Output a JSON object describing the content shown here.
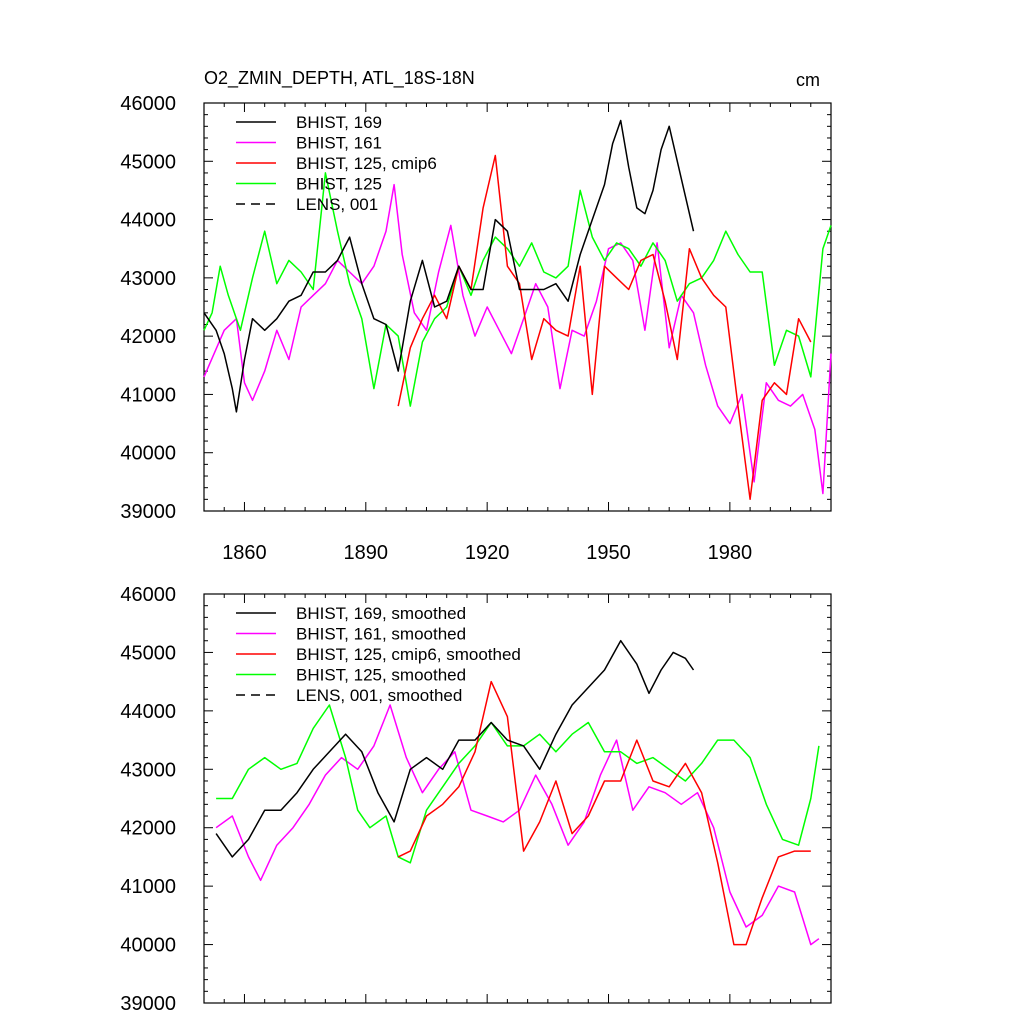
{
  "chart_data": [
    {
      "type": "line",
      "title": "O2_ZMIN_DEPTH, ATL_18S-18N",
      "units": "cm",
      "xlabel": "",
      "ylabel": "",
      "xlim": [
        1850,
        2005
      ],
      "ylim": [
        39000,
        46000
      ],
      "xticks": [
        1860,
        1890,
        1920,
        1950,
        1980
      ],
      "yticks": [
        39000,
        40000,
        41000,
        42000,
        43000,
        44000,
        45000,
        46000
      ],
      "show_x_tick_labels": true,
      "legend_position": "top-left",
      "legend": [
        {
          "label": "BHIST, 169",
          "color": "#000000",
          "dash": "solid"
        },
        {
          "label": "BHIST, 161",
          "color": "#ff00ff",
          "dash": "solid"
        },
        {
          "label": "BHIST, 125, cmip6",
          "color": "#ff0000",
          "dash": "solid"
        },
        {
          "label": "BHIST, 125",
          "color": "#00ff00",
          "dash": "solid"
        },
        {
          "label": "LENS, 001",
          "color": "#000000",
          "dash": "dashed"
        }
      ],
      "series": [
        {
          "name": "BHIST, 161",
          "color": "#ff00ff",
          "x": [
            1850,
            1855,
            1858,
            1860,
            1862,
            1865,
            1868,
            1871,
            1874,
            1877,
            1880,
            1883,
            1886,
            1889,
            1892,
            1895,
            1897,
            1899,
            1902,
            1905,
            1908,
            1911,
            1914,
            1917,
            1920,
            1923,
            1926,
            1929,
            1932,
            1935,
            1938,
            1941,
            1944,
            1947,
            1950,
            1953,
            1956,
            1959,
            1962,
            1965,
            1968,
            1971,
            1974,
            1977,
            1980,
            1983,
            1986,
            1989,
            1992,
            1995,
            1998,
            2001,
            2003,
            2005
          ],
          "values": [
            41300,
            42100,
            42300,
            41200,
            40900,
            41400,
            42100,
            41600,
            42500,
            42700,
            42900,
            43300,
            43100,
            42900,
            43200,
            43800,
            44600,
            43400,
            42400,
            42100,
            43100,
            43900,
            42700,
            42000,
            42500,
            42100,
            41700,
            42300,
            42900,
            42500,
            41100,
            42100,
            42000,
            42600,
            43500,
            43600,
            43300,
            42100,
            43600,
            41800,
            42700,
            42400,
            41500,
            40800,
            40500,
            41000,
            39500,
            41200,
            40900,
            40800,
            41000,
            40400,
            39300,
            41700
          ]
        },
        {
          "name": "BHIST, 125",
          "color": "#00ff00",
          "x": [
            1850,
            1852,
            1854,
            1856,
            1859,
            1862,
            1865,
            1868,
            1871,
            1874,
            1877,
            1880,
            1883,
            1886,
            1889,
            1892,
            1895,
            1898,
            1901,
            1904,
            1907,
            1910,
            1913,
            1916,
            1919,
            1922,
            1925,
            1928,
            1931,
            1934,
            1937,
            1940,
            1943,
            1946,
            1949,
            1952,
            1955,
            1958,
            1961,
            1964,
            1967,
            1970,
            1973,
            1976,
            1979,
            1982,
            1985,
            1988,
            1991,
            1994,
            1997,
            2000,
            2003,
            2005
          ],
          "values": [
            42100,
            42400,
            43200,
            42700,
            42100,
            43000,
            43800,
            42900,
            43300,
            43100,
            42800,
            44800,
            43800,
            42900,
            42300,
            41100,
            42200,
            42000,
            40800,
            41900,
            42300,
            42500,
            43200,
            42700,
            43300,
            43700,
            43500,
            43200,
            43600,
            43100,
            43000,
            43200,
            44500,
            43700,
            43300,
            43600,
            43500,
            43200,
            43600,
            43300,
            42600,
            42900,
            43000,
            43300,
            43800,
            43400,
            43100,
            43100,
            41500,
            42100,
            42000,
            41300,
            43500,
            43900
          ]
        },
        {
          "name": "BHIST, 125, cmip6",
          "color": "#ff0000",
          "x": [
            1898,
            1901,
            1904,
            1907,
            1910,
            1913,
            1916,
            1919,
            1922,
            1925,
            1928,
            1931,
            1934,
            1937,
            1940,
            1943,
            1946,
            1949,
            1952,
            1955,
            1958,
            1961,
            1964,
            1967,
            1970,
            1973,
            1976,
            1979,
            1982,
            1985,
            1988,
            1991,
            1994,
            1997,
            2000
          ],
          "values": [
            40800,
            41800,
            42300,
            42700,
            42300,
            43200,
            42800,
            44200,
            45100,
            43200,
            42900,
            41600,
            42300,
            42100,
            42000,
            43200,
            41000,
            43200,
            43000,
            42800,
            43300,
            43400,
            42600,
            41600,
            43500,
            43000,
            42700,
            42500,
            40800,
            39200,
            40900,
            41200,
            41000,
            42300,
            41900
          ]
        },
        {
          "name": "BHIST, 169",
          "color": "#000000",
          "x": [
            1850,
            1853,
            1855,
            1857,
            1858,
            1860,
            1862,
            1865,
            1868,
            1871,
            1874,
            1877,
            1880,
            1883,
            1886,
            1889,
            1892,
            1895,
            1898,
            1901,
            1904,
            1907,
            1910,
            1913,
            1916,
            1919,
            1922,
            1925,
            1928,
            1931,
            1934,
            1937,
            1940,
            1943,
            1946,
            1949,
            1951,
            1953,
            1955,
            1957,
            1959,
            1961,
            1963,
            1965,
            1967,
            1969,
            1971
          ],
          "values": [
            42400,
            42100,
            41700,
            41100,
            40700,
            41600,
            42300,
            42100,
            42300,
            42600,
            42700,
            43100,
            43100,
            43300,
            43700,
            42900,
            42300,
            42200,
            41400,
            42600,
            43300,
            42500,
            42600,
            43200,
            42800,
            42800,
            44000,
            43800,
            42800,
            42800,
            42800,
            42900,
            42600,
            43400,
            44000,
            44600,
            45300,
            45700,
            44900,
            44200,
            44100,
            44500,
            45200,
            45600,
            45000,
            44400,
            43800
          ]
        }
      ]
    },
    {
      "type": "line",
      "title": "",
      "xlabel": "",
      "ylabel": "",
      "xlim": [
        1850,
        2005
      ],
      "ylim": [
        39000,
        46000
      ],
      "xticks": [
        1860,
        1890,
        1920,
        1950,
        1980
      ],
      "yticks": [
        39000,
        40000,
        41000,
        42000,
        43000,
        44000,
        45000,
        46000
      ],
      "show_x_tick_labels": false,
      "legend_position": "top-left",
      "legend": [
        {
          "label": "BHIST, 169, smoothed",
          "color": "#000000",
          "dash": "solid"
        },
        {
          "label": "BHIST, 161, smoothed",
          "color": "#ff00ff",
          "dash": "solid"
        },
        {
          "label": "BHIST, 125, cmip6, smoothed",
          "color": "#ff0000",
          "dash": "solid"
        },
        {
          "label": "BHIST, 125, smoothed",
          "color": "#00ff00",
          "dash": "solid"
        },
        {
          "label": "LENS, 001, smoothed",
          "color": "#000000",
          "dash": "dashed"
        }
      ],
      "series": [
        {
          "name": "BHIST, 161, smoothed",
          "color": "#ff00ff",
          "x": [
            1853,
            1857,
            1861,
            1864,
            1868,
            1872,
            1876,
            1880,
            1884,
            1888,
            1892,
            1896,
            1900,
            1904,
            1908,
            1912,
            1916,
            1920,
            1924,
            1928,
            1932,
            1936,
            1940,
            1944,
            1948,
            1952,
            1956,
            1960,
            1964,
            1968,
            1972,
            1976,
            1980,
            1984,
            1988,
            1992,
            1996,
            2000,
            2002
          ],
          "values": [
            42000,
            42200,
            41500,
            41100,
            41700,
            42000,
            42400,
            42900,
            43200,
            43000,
            43400,
            44100,
            43200,
            42600,
            43000,
            43300,
            42300,
            42200,
            42100,
            42300,
            42900,
            42400,
            41700,
            42100,
            42900,
            43500,
            42300,
            42700,
            42600,
            42400,
            42600,
            42000,
            40900,
            40300,
            40500,
            41000,
            40900,
            40000,
            40100
          ]
        },
        {
          "name": "BHIST, 125, smoothed",
          "color": "#00ff00",
          "x": [
            1853,
            1857,
            1861,
            1865,
            1869,
            1873,
            1877,
            1881,
            1885,
            1888,
            1891,
            1895,
            1898,
            1901,
            1905,
            1909,
            1913,
            1917,
            1921,
            1925,
            1929,
            1933,
            1937,
            1941,
            1945,
            1949,
            1953,
            1957,
            1961,
            1965,
            1969,
            1973,
            1977,
            1981,
            1985,
            1989,
            1993,
            1997,
            2000,
            2002
          ],
          "values": [
            42500,
            42500,
            43000,
            43200,
            43000,
            43100,
            43700,
            44100,
            43200,
            42300,
            42000,
            42200,
            41500,
            41400,
            42300,
            42700,
            43100,
            43400,
            43800,
            43400,
            43400,
            43600,
            43300,
            43600,
            43800,
            43300,
            43300,
            43100,
            43200,
            43000,
            42800,
            43100,
            43500,
            43500,
            43200,
            42400,
            41800,
            41700,
            42500,
            43400
          ]
        },
        {
          "name": "BHIST, 125, cmip6, smoothed",
          "color": "#ff0000",
          "x": [
            1898,
            1901,
            1905,
            1909,
            1913,
            1917,
            1921,
            1925,
            1929,
            1933,
            1937,
            1941,
            1945,
            1949,
            1953,
            1957,
            1961,
            1965,
            1969,
            1973,
            1977,
            1981,
            1984,
            1988,
            1992,
            1996,
            2000
          ],
          "values": [
            41500,
            41600,
            42200,
            42400,
            42700,
            43300,
            44500,
            43900,
            41600,
            42100,
            42800,
            41900,
            42200,
            42800,
            42800,
            43500,
            42800,
            42700,
            43100,
            42600,
            41400,
            40000,
            40000,
            40800,
            41500,
            41600,
            41600
          ]
        },
        {
          "name": "BHIST, 169, smoothed",
          "color": "#000000",
          "x": [
            1853,
            1857,
            1861,
            1865,
            1869,
            1873,
            1877,
            1881,
            1885,
            1889,
            1893,
            1897,
            1901,
            1905,
            1909,
            1913,
            1917,
            1921,
            1925,
            1929,
            1933,
            1937,
            1941,
            1945,
            1949,
            1953,
            1957,
            1960,
            1963,
            1966,
            1969,
            1971
          ],
          "values": [
            41900,
            41500,
            41800,
            42300,
            42300,
            42600,
            43000,
            43300,
            43600,
            43300,
            42600,
            42100,
            43000,
            43200,
            43000,
            43500,
            43500,
            43800,
            43500,
            43400,
            43000,
            43600,
            44100,
            44400,
            44700,
            45200,
            44800,
            44300,
            44700,
            45000,
            44900,
            44700
          ]
        }
      ]
    }
  ]
}
